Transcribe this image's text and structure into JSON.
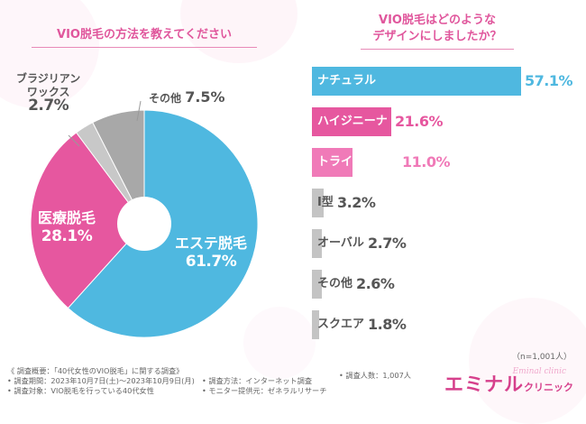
{
  "colors": {
    "blue": "#4fb8e0",
    "pink": "#e6579f",
    "light_pink": "#f07ab8",
    "gray": "#c8c8c8",
    "dark_gray": "#a8a8a8",
    "bar_gray": "#c4c4c4",
    "title_pink": "#e0569c"
  },
  "left_title": "VIO脱毛の方法を教えてください",
  "right_title_line1": "VIO脱毛はどのような",
  "right_title_line2": "デザインにしましたか？",
  "sample_size": "（n=1,001人）",
  "chart_data": [
    {
      "type": "pie",
      "title": "VIO脱毛の方法を教えてください",
      "slices": [
        {
          "label": "エステ脱毛",
          "value": 61.7,
          "display": "61.7%"
        },
        {
          "label": "医療脱毛",
          "value": 28.1,
          "display": "28.1%"
        },
        {
          "label": "ブラジリアンワックス",
          "label_line1": "ブラジリアン",
          "label_line2": "ワックス",
          "value": 2.7,
          "display": "2.7%"
        },
        {
          "label": "その他",
          "value": 7.5,
          "display": "7.5%"
        }
      ]
    },
    {
      "type": "bar",
      "orientation": "horizontal",
      "title": "VIO脱毛はどのようなデザインにしましたか？",
      "categories": [
        "ナチュラル",
        "ハイジニーナ",
        "トライアングル",
        "I型",
        "オーバル",
        "その他",
        "スクエア"
      ],
      "values": [
        57.1,
        21.6,
        11.0,
        3.2,
        2.7,
        2.6,
        1.8
      ],
      "displays": [
        "57.1%",
        "21.6%",
        "11.0%",
        "3.2%",
        "2.7%",
        "2.6%",
        "1.8%"
      ],
      "xlim": [
        0,
        57.1
      ]
    }
  ],
  "footer": {
    "overview": "《 調査概要：「40代女性のVIO脱毛」に関する調査》",
    "period": "• 調査期間：2023年10月7日(土)〜2023年10月9日(月)",
    "method": "• 調査方法：インターネット調査",
    "count": "• 調査人数：1,007人",
    "target": "• 調査対象：VIO脱毛を行っている40代女性",
    "provider": "• モニター提供元：ゼネラルリサーチ"
  },
  "brand": {
    "name": "エミナル",
    "sub": "クリニック",
    "script": "Eminal clinic"
  }
}
